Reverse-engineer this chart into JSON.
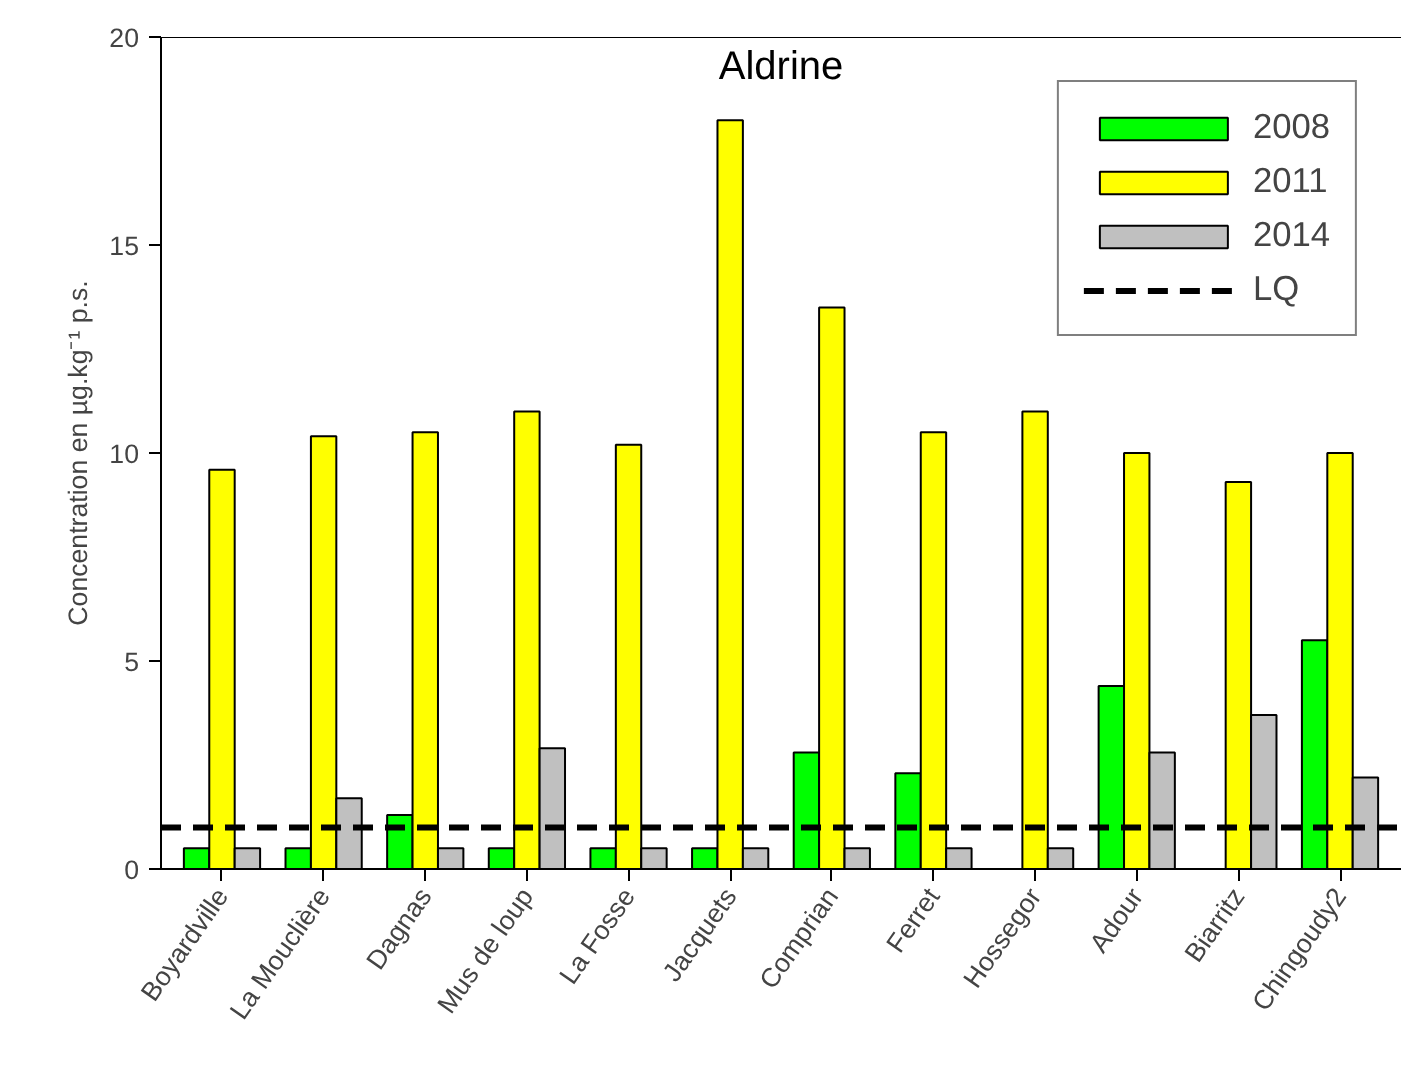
{
  "chart_data": {
    "type": "bar",
    "title": "Aldrine",
    "ylabel": "Concentration en µg.kg⁻¹ p.s.",
    "categories": [
      "Boyardville",
      "La Mouclière",
      "Dagnas",
      "Mus de loup",
      "La Fosse",
      "Jacquets",
      "Comprian",
      "Ferret",
      "Hossegor",
      "Adour",
      "Biarritz",
      "Chingoudy2"
    ],
    "series": [
      {
        "name": "2008",
        "color": "#00ff00",
        "values": [
          0.5,
          0.5,
          1.3,
          0.5,
          0.5,
          0.5,
          2.8,
          2.3,
          null,
          4.4,
          null,
          5.5
        ]
      },
      {
        "name": "2011",
        "color": "#ffff00",
        "values": [
          9.6,
          10.4,
          10.5,
          11,
          10.2,
          18,
          13.5,
          10.5,
          11,
          10,
          9.3,
          10
        ]
      },
      {
        "name": "2014",
        "color": "#c0c0c0",
        "values": [
          0.5,
          1.7,
          0.5,
          2.9,
          0.5,
          0.5,
          0.5,
          0.5,
          0.5,
          2.8,
          3.7,
          2.2
        ]
      }
    ],
    "ref_lines": [
      {
        "axis": "y",
        "value": 1,
        "label": "LQ",
        "color": "#000000",
        "line_style": "dashed"
      }
    ],
    "ylim": [
      0,
      20
    ],
    "yticks": [
      0,
      5,
      10,
      15,
      20
    ],
    "grid": false,
    "legend": "top right"
  }
}
